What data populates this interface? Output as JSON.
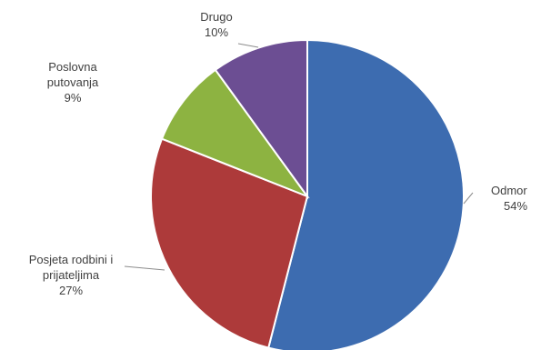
{
  "chart_data": {
    "type": "pie",
    "title": "",
    "start_angle_deg": 0,
    "direction": "clockwise",
    "slices": [
      {
        "name_lines": [
          "Odmor"
        ],
        "value": 54,
        "value_label": "54%",
        "color": "#3d6cb0"
      },
      {
        "name_lines": [
          "Posjeta rodbini i",
          "prijateljima"
        ],
        "value": 27,
        "value_label": "27%",
        "color": "#ad3a3a"
      },
      {
        "name_lines": [
          "Poslovna",
          "putovanja"
        ],
        "value": 9,
        "value_label": "9%",
        "color": "#8db341"
      },
      {
        "name_lines": [
          "Drugo"
        ],
        "value": 10,
        "value_label": "10%",
        "color": "#6c4e93"
      }
    ],
    "slice_border_color": "#ffffff",
    "legend": "none"
  }
}
